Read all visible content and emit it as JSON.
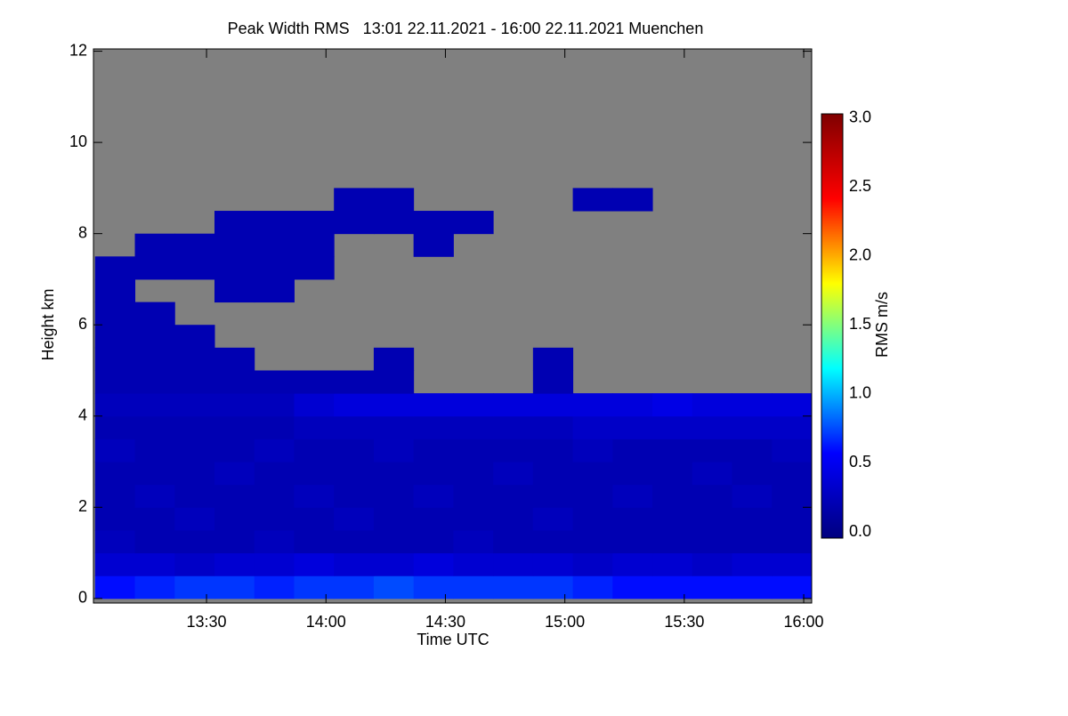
{
  "chart_data": {
    "type": "heatmap",
    "title": "Peak Width RMS   13:01 22.11.2021 - 16:00 22.11.2021 Muenchen",
    "x_label": "Time UTC",
    "y_label": "Height km",
    "colorbar_label": "RMS m/s",
    "x": [
      787,
      797,
      807,
      817,
      827,
      837,
      847,
      857,
      867,
      877,
      887,
      897,
      907,
      917,
      927,
      937,
      947,
      957
    ],
    "y": [
      0.25,
      0.75,
      1.25,
      1.75,
      2.25,
      2.75,
      3.25,
      3.75,
      4.25,
      4.75,
      5.25,
      5.75,
      6.25,
      6.75,
      7.25,
      7.75,
      8.25,
      8.75,
      9.25,
      9.75,
      10.25,
      10.75,
      11.25,
      11.75
    ],
    "z": [
      [
        0.6,
        0.65,
        0.7,
        0.7,
        0.65,
        0.7,
        0.7,
        0.75,
        0.7,
        0.7,
        0.7,
        0.7,
        0.65,
        0.6,
        0.6,
        0.6,
        0.6,
        0.6
      ],
      [
        0.35,
        0.35,
        0.3,
        0.35,
        0.35,
        0.4,
        0.35,
        0.35,
        0.4,
        0.35,
        0.35,
        0.35,
        0.3,
        0.35,
        0.35,
        0.3,
        0.35,
        0.35
      ],
      [
        0.25,
        0.2,
        0.2,
        0.2,
        0.25,
        0.2,
        0.2,
        0.2,
        0.2,
        0.25,
        0.2,
        0.2,
        0.2,
        0.2,
        0.2,
        0.2,
        0.2,
        0.2
      ],
      [
        0.2,
        0.2,
        0.25,
        0.2,
        0.2,
        0.2,
        0.25,
        0.2,
        0.2,
        0.2,
        0.2,
        0.25,
        0.2,
        0.2,
        0.2,
        0.2,
        0.2,
        0.2
      ],
      [
        0.2,
        0.25,
        0.2,
        0.2,
        0.2,
        0.25,
        0.2,
        0.2,
        0.25,
        0.2,
        0.2,
        0.2,
        0.2,
        0.25,
        0.2,
        0.2,
        0.25,
        0.2
      ],
      [
        0.2,
        0.2,
        0.2,
        0.25,
        0.2,
        0.2,
        0.2,
        0.2,
        0.2,
        0.2,
        0.25,
        0.2,
        0.2,
        0.2,
        0.2,
        0.25,
        0.2,
        0.2
      ],
      [
        0.25,
        0.2,
        0.2,
        0.2,
        0.25,
        0.2,
        0.2,
        0.25,
        0.2,
        0.2,
        0.2,
        0.2,
        0.25,
        0.2,
        0.2,
        0.2,
        0.2,
        0.25
      ],
      [
        0.2,
        0.2,
        0.2,
        0.2,
        0.2,
        0.25,
        0.25,
        0.25,
        0.25,
        0.25,
        0.25,
        0.25,
        0.3,
        0.3,
        0.3,
        0.3,
        0.3,
        0.3
      ],
      [
        0.25,
        0.25,
        0.25,
        0.25,
        0.25,
        0.35,
        0.4,
        0.4,
        0.4,
        0.4,
        0.4,
        0.4,
        0.4,
        0.4,
        0.45,
        0.4,
        0.4,
        0.4
      ],
      [
        0.2,
        0.2,
        0.2,
        0.2,
        0.2,
        0.2,
        0.2,
        0.2,
        null,
        null,
        null,
        0.2,
        null,
        null,
        null,
        null,
        null,
        null
      ],
      [
        0.2,
        0.2,
        0.2,
        0.2,
        null,
        null,
        null,
        0.2,
        null,
        null,
        null,
        0.2,
        null,
        null,
        null,
        null,
        null,
        null
      ],
      [
        0.2,
        0.2,
        0.2,
        null,
        null,
        null,
        null,
        null,
        null,
        null,
        null,
        null,
        null,
        null,
        null,
        null,
        null,
        null
      ],
      [
        0.2,
        0.2,
        null,
        null,
        null,
        null,
        null,
        null,
        null,
        null,
        null,
        null,
        null,
        null,
        null,
        null,
        null,
        null
      ],
      [
        0.2,
        null,
        null,
        0.2,
        0.2,
        null,
        null,
        null,
        null,
        null,
        null,
        null,
        null,
        null,
        null,
        null,
        null,
        null
      ],
      [
        0.2,
        0.2,
        0.2,
        0.2,
        0.2,
        0.2,
        null,
        null,
        null,
        null,
        null,
        null,
        null,
        null,
        null,
        null,
        null,
        null
      ],
      [
        null,
        0.2,
        0.2,
        0.2,
        0.2,
        0.2,
        null,
        null,
        0.2,
        null,
        null,
        null,
        null,
        null,
        null,
        null,
        null,
        null
      ],
      [
        null,
        null,
        null,
        0.2,
        0.2,
        0.2,
        0.2,
        0.2,
        0.2,
        0.2,
        null,
        null,
        null,
        null,
        null,
        null,
        null,
        null
      ],
      [
        null,
        null,
        null,
        null,
        null,
        null,
        0.2,
        0.2,
        null,
        null,
        null,
        null,
        0.2,
        0.2,
        null,
        null,
        null,
        null
      ],
      [
        null,
        null,
        null,
        null,
        null,
        null,
        null,
        null,
        null,
        null,
        null,
        null,
        null,
        null,
        null,
        null,
        null,
        null
      ],
      [
        null,
        null,
        null,
        null,
        null,
        null,
        null,
        null,
        null,
        null,
        null,
        null,
        null,
        null,
        null,
        null,
        null,
        null
      ],
      [
        null,
        null,
        null,
        null,
        null,
        null,
        null,
        null,
        null,
        null,
        null,
        null,
        null,
        null,
        null,
        null,
        null,
        null
      ],
      [
        null,
        null,
        null,
        null,
        null,
        null,
        null,
        null,
        null,
        null,
        null,
        null,
        null,
        null,
        null,
        null,
        null,
        null
      ],
      [
        null,
        null,
        null,
        null,
        null,
        null,
        null,
        null,
        null,
        null,
        null,
        null,
        null,
        null,
        null,
        null,
        null,
        null
      ],
      [
        null,
        null,
        null,
        null,
        null,
        null,
        null,
        null,
        null,
        null,
        null,
        null,
        null,
        null,
        null,
        null,
        null,
        null
      ]
    ],
    "xlim": [
      781.6,
      962
    ],
    "xticks": [
      {
        "value": 810,
        "label": "13:30"
      },
      {
        "value": 840,
        "label": "14:00"
      },
      {
        "value": 870,
        "label": "14:30"
      },
      {
        "value": 900,
        "label": "15:00"
      },
      {
        "value": 930,
        "label": "15:30"
      },
      {
        "value": 960,
        "label": "16:00"
      }
    ],
    "ylim": [
      -0.1,
      12.05
    ],
    "yticks": [
      0,
      2,
      4,
      6,
      8,
      10,
      12
    ],
    "zlim": [
      -0.045,
      3.03
    ],
    "zticks": [
      {
        "value": 0,
        "label": "0.0"
      },
      {
        "value": 0.5,
        "label": "0.5"
      },
      {
        "value": 1,
        "label": "1.0"
      },
      {
        "value": 1.5,
        "label": "1.5"
      },
      {
        "value": 2,
        "label": "2.0"
      },
      {
        "value": 2.5,
        "label": "2.5"
      },
      {
        "value": 3,
        "label": "3.0"
      }
    ],
    "colorscale": [
      "#00007f",
      "#0000ff",
      "#00ffff",
      "#ffff00",
      "#ff0000",
      "#7f0000"
    ],
    "missing_color": "#808080"
  }
}
